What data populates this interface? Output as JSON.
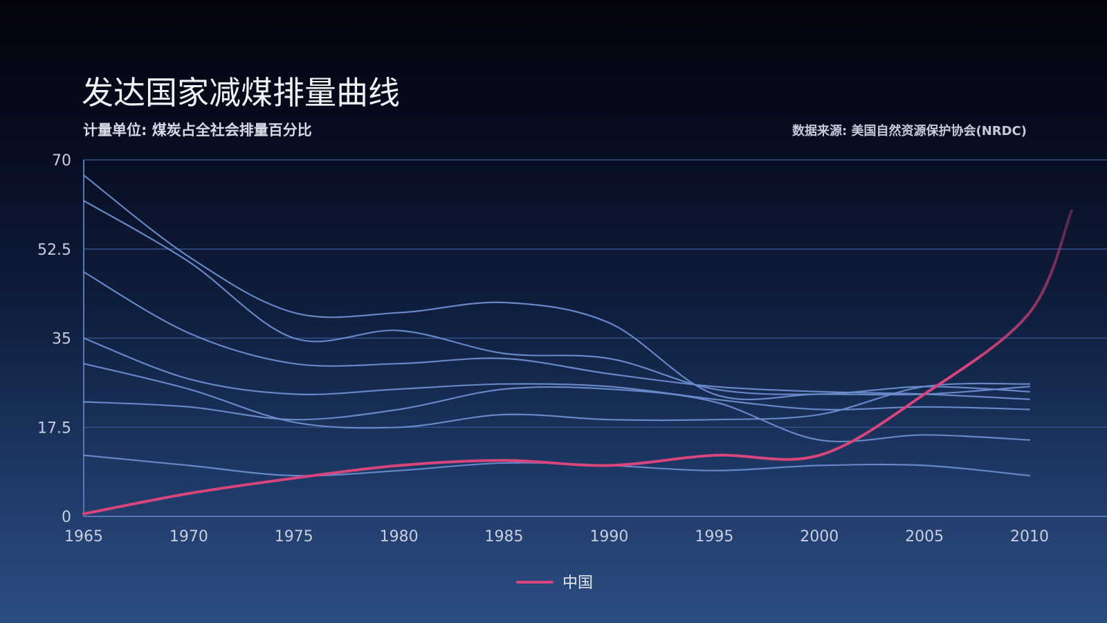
{
  "chart_data": {
    "type": "line",
    "title": "发达国家减煤排量曲线",
    "subtitle": "计量单位: 煤炭占全社会排量百分比",
    "source": "数据来源:  美国自然资源保护协会(NRDC)",
    "xlabel": "",
    "ylabel": "",
    "x_ticks": [
      1965,
      1970,
      1975,
      1980,
      1985,
      1990,
      1995,
      2000,
      2005,
      2010
    ],
    "y_ticks": [
      0,
      17.5,
      35,
      52.5,
      70
    ],
    "y_tick_labels": [
      "0",
      "17.5",
      "35",
      "52.5",
      "70"
    ],
    "xlim": [
      1965,
      2012
    ],
    "ylim": [
      0,
      70
    ],
    "grid": "horizontal",
    "legend_position": "bottom-center",
    "colors": {
      "developed": "#6c8ccd",
      "china": "#d8457b",
      "grid": "#34508a",
      "axis": "#5b78b3"
    },
    "series": [
      {
        "points": [
          [
            1965,
            67
          ],
          [
            1970,
            51
          ],
          [
            1975,
            40
          ],
          [
            1980,
            40
          ],
          [
            1985,
            42
          ],
          [
            1990,
            38
          ],
          [
            1995,
            24
          ],
          [
            2000,
            24
          ],
          [
            2005,
            24
          ],
          [
            2010,
            25.5
          ]
        ]
      },
      {
        "points": [
          [
            1965,
            62
          ],
          [
            1970,
            50
          ],
          [
            1975,
            35
          ],
          [
            1980,
            36.5
          ],
          [
            1985,
            32
          ],
          [
            1990,
            31
          ],
          [
            1995,
            25
          ],
          [
            2000,
            24
          ],
          [
            2005,
            25.5
          ],
          [
            2010,
            24.5
          ]
        ]
      },
      {
        "points": [
          [
            1965,
            48
          ],
          [
            1970,
            36
          ],
          [
            1975,
            30
          ],
          [
            1980,
            30
          ],
          [
            1985,
            31
          ],
          [
            1990,
            28
          ],
          [
            1995,
            25.5
          ],
          [
            2000,
            24.5
          ],
          [
            2005,
            24
          ],
          [
            2010,
            23
          ]
        ]
      },
      {
        "points": [
          [
            1965,
            35
          ],
          [
            1970,
            27
          ],
          [
            1975,
            24
          ],
          [
            1980,
            25
          ],
          [
            1985,
            26
          ],
          [
            1990,
            25.5
          ],
          [
            1995,
            23
          ],
          [
            2000,
            21
          ],
          [
            2005,
            21.5
          ],
          [
            2010,
            21
          ]
        ]
      },
      {
        "points": [
          [
            1965,
            30
          ],
          [
            1970,
            25
          ],
          [
            1975,
            18.5
          ],
          [
            1980,
            17.5
          ],
          [
            1985,
            20
          ],
          [
            1990,
            19
          ],
          [
            1995,
            19
          ],
          [
            2000,
            20
          ],
          [
            2005,
            25.5
          ],
          [
            2010,
            26
          ]
        ]
      },
      {
        "points": [
          [
            1965,
            22.5
          ],
          [
            1970,
            21.5
          ],
          [
            1975,
            19
          ],
          [
            1980,
            21
          ],
          [
            1985,
            25
          ],
          [
            1990,
            25
          ],
          [
            1995,
            22.5
          ],
          [
            2000,
            15
          ],
          [
            2005,
            16
          ],
          [
            2010,
            15
          ]
        ]
      },
      {
        "points": [
          [
            1965,
            12
          ],
          [
            1970,
            10
          ],
          [
            1975,
            8
          ],
          [
            1980,
            9
          ],
          [
            1985,
            10.5
          ],
          [
            1990,
            10
          ],
          [
            1995,
            9
          ],
          [
            2000,
            10
          ],
          [
            2005,
            10
          ],
          [
            2010,
            8
          ]
        ]
      },
      {
        "name": "中国",
        "highlight": true,
        "points": [
          [
            1965,
            0.5
          ],
          [
            1970,
            4.5
          ],
          [
            1975,
            7.5
          ],
          [
            1980,
            10
          ],
          [
            1985,
            11
          ],
          [
            1990,
            10
          ],
          [
            1995,
            12
          ],
          [
            2000,
            12
          ],
          [
            2005,
            24
          ],
          [
            2010,
            40
          ],
          [
            2012,
            60
          ]
        ]
      }
    ]
  }
}
